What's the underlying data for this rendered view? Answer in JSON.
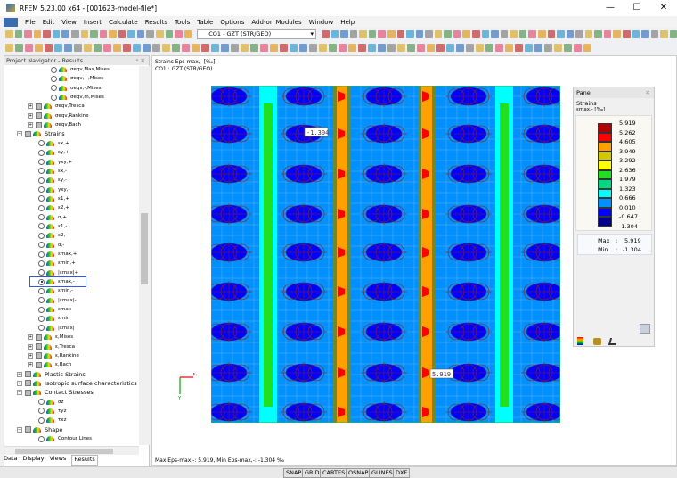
{
  "window": {
    "title": "RFEM 5.23.00 x64 - [001623-model-file*]",
    "minimize": "—",
    "maximize": "☐",
    "close": "✕"
  },
  "menu": [
    "File",
    "Edit",
    "View",
    "Insert",
    "Calculate",
    "Results",
    "Tools",
    "Table",
    "Options",
    "Add-on Modules",
    "Window",
    "Help"
  ],
  "toolbar": {
    "load_combo": "CO1 - GZT (STR/GEO)"
  },
  "navigator": {
    "title": "Project Navigator - Results",
    "items": [
      {
        "label": "σeqv,Max,Mises",
        "type": "radio",
        "level": 3
      },
      {
        "label": "σeqv,+,Mises",
        "type": "radio",
        "level": 3
      },
      {
        "label": "σeqv,-,Mises",
        "type": "radio",
        "level": 3
      },
      {
        "label": "σeqv,m,Mises",
        "type": "radio",
        "level": 3
      },
      {
        "label": "σeqv,Tresca",
        "type": "group",
        "level": 2
      },
      {
        "label": "σeqv,Rankine",
        "type": "group",
        "level": 2
      },
      {
        "label": "σeqv,Bach",
        "type": "group",
        "level": 2
      },
      {
        "label": "Strains",
        "type": "open",
        "level": 1
      },
      {
        "label": "εx,+",
        "type": "radio",
        "level": 2
      },
      {
        "label": "εy,+",
        "type": "radio",
        "level": 2
      },
      {
        "label": "γxy,+",
        "type": "radio",
        "level": 2
      },
      {
        "label": "εx,-",
        "type": "radio",
        "level": 2
      },
      {
        "label": "εy,-",
        "type": "radio",
        "level": 2
      },
      {
        "label": "γxy,-",
        "type": "radio",
        "level": 2
      },
      {
        "label": "ε1,+",
        "type": "radio",
        "level": 2
      },
      {
        "label": "ε2,+",
        "type": "radio",
        "level": 2
      },
      {
        "label": "α,+",
        "type": "radio",
        "level": 2
      },
      {
        "label": "ε1,-",
        "type": "radio",
        "level": 2
      },
      {
        "label": "ε2,-",
        "type": "radio",
        "level": 2
      },
      {
        "label": "α,-",
        "type": "radio",
        "level": 2
      },
      {
        "label": "εmax,+",
        "type": "radio",
        "level": 2
      },
      {
        "label": "εmin,+",
        "type": "radio",
        "level": 2
      },
      {
        "label": "|εmax|+",
        "type": "radio",
        "level": 2
      },
      {
        "label": "εmax,-",
        "type": "radio",
        "level": 2,
        "selected": true
      },
      {
        "label": "εmin,-",
        "type": "radio",
        "level": 2
      },
      {
        "label": "|εmax|-",
        "type": "radio",
        "level": 2
      },
      {
        "label": "εmax",
        "type": "radio",
        "level": 2
      },
      {
        "label": "εmin",
        "type": "radio",
        "level": 2
      },
      {
        "label": "|εmax|",
        "type": "radio",
        "level": 2
      },
      {
        "label": "ε,Mises",
        "type": "group",
        "level": 2
      },
      {
        "label": "ε,Tresca",
        "type": "group",
        "level": 2
      },
      {
        "label": "ε,Rankine",
        "type": "group",
        "level": 2
      },
      {
        "label": "ε,Bach",
        "type": "group",
        "level": 2
      },
      {
        "label": "Plastic Strains",
        "type": "group",
        "level": 1
      },
      {
        "label": "Isotropic surface characteristics",
        "type": "group",
        "level": 1
      },
      {
        "label": "Contact Stresses",
        "type": "open",
        "level": 1
      },
      {
        "label": "σz",
        "type": "radio",
        "level": 2
      },
      {
        "label": "τyz",
        "type": "radio",
        "level": 2
      },
      {
        "label": "τxz",
        "type": "radio",
        "level": 2
      },
      {
        "label": "Shape",
        "type": "open",
        "level": 1
      },
      {
        "label": "Contour Lines",
        "type": "radio",
        "level": 2
      }
    ],
    "tabs": [
      "Data",
      "Display",
      "Views",
      "Results"
    ],
    "active_tab": "Results"
  },
  "view": {
    "header_line1": "Strains Eps-max,- [‰]",
    "header_line2": "CO1 : GZT (STR/GEO)",
    "label_min": "-1.304",
    "label_max": "5.919",
    "axis_x": "X",
    "axis_y": "Y",
    "footer": "Max Eps-max,-: 5.919, Min Eps-max,-: -1.304 ‰"
  },
  "panel": {
    "title": "Panel",
    "close": "✕",
    "section": "Strains",
    "quantity": "εmax,- [‰]",
    "legend_values": [
      "5.919",
      "5.262",
      "4.605",
      "3.949",
      "3.292",
      "2.636",
      "1.979",
      "1.323",
      "0.666",
      "0.010",
      "-0.647",
      "-1.304"
    ],
    "legend_colors": [
      "#b00000",
      "#ff0000",
      "#ffa000",
      "#d0c800",
      "#ffff00",
      "#20e020",
      "#00d880",
      "#00ffff",
      "#0090ff",
      "#0000ff",
      "#00008c"
    ],
    "max_label": "Max",
    "max_value": "5.919",
    "min_label": "Min",
    "min_value": "-1.304"
  },
  "statusbar": [
    "SNAP",
    "GRID",
    "CARTES",
    "OSNAP",
    "GLINES",
    "DXF"
  ]
}
